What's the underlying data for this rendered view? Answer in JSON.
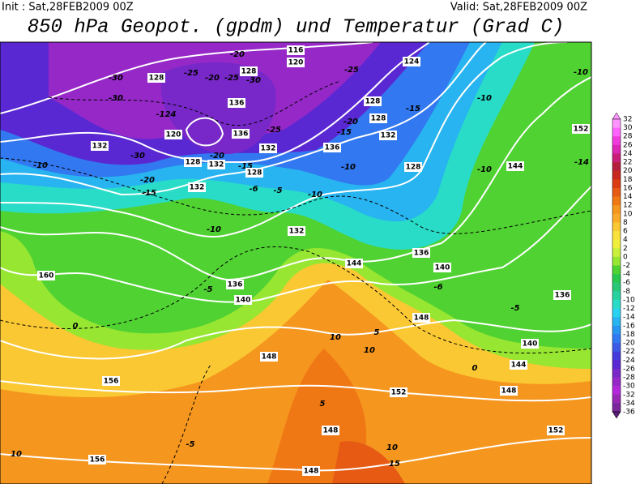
{
  "header": {
    "init": "Init : Sat,28FEB2009 00Z",
    "valid": "Valid: Sat,28FEB2009 00Z",
    "title": "850 hPa Geopot. (gpdm) und Temperatur (Grad C)"
  },
  "colorbar": {
    "labels": [
      32,
      30,
      28,
      26,
      24,
      22,
      20,
      18,
      16,
      14,
      12,
      10,
      8,
      6,
      4,
      2,
      0,
      -2,
      -4,
      -6,
      -8,
      -10,
      -12,
      -14,
      -16,
      -18,
      -20,
      -22,
      -24,
      -26,
      -28,
      -30,
      -32,
      -34,
      -36
    ],
    "colors": [
      "#ff96ff",
      "#ff64ff",
      "#f03cdc",
      "#dc28b4",
      "#c81e78",
      "#b41e3c",
      "#c8281e",
      "#dc3c14",
      "#e65a14",
      "#f07814",
      "#f5961e",
      "#faaa28",
      "#fac832",
      "#fae13c",
      "#f0f03c",
      "#c8f03c",
      "#96e632",
      "#50d232",
      "#28c850",
      "#28c878",
      "#28d2a0",
      "#28dcc8",
      "#28d2f0",
      "#28b4f0",
      "#2896f0",
      "#3278f0",
      "#3c5ae6",
      "#463cdc",
      "#5a28d2",
      "#7828c8",
      "#9628c8",
      "#b428dc",
      "#9628b4",
      "#78289b",
      "#5a1e78"
    ]
  },
  "map": {
    "labels": [
      116,
      120,
      124,
      128,
      -30,
      -25,
      -20,
      -25,
      -30,
      128,
      -20,
      -25,
      128,
      -15,
      -10,
      -10,
      -30,
      -124,
      136,
      -20,
      128,
      -15,
      132,
      120,
      136,
      -25,
      132,
      -30,
      132,
      136,
      152,
      128,
      -20,
      132,
      -15,
      128,
      -10,
      -20,
      -15,
      132,
      -6,
      -5,
      -10,
      128,
      -10,
      144,
      -14,
      -10,
      160,
      144,
      140,
      136,
      140,
      -5,
      0,
      -5,
      136,
      148,
      10,
      10,
      5,
      148,
      140,
      144,
      0,
      156,
      152,
      5,
      148,
      148,
      152,
      10,
      156,
      10,
      15,
      148,
      -5,
      -10,
      132,
      136,
      -6
    ]
  }
}
